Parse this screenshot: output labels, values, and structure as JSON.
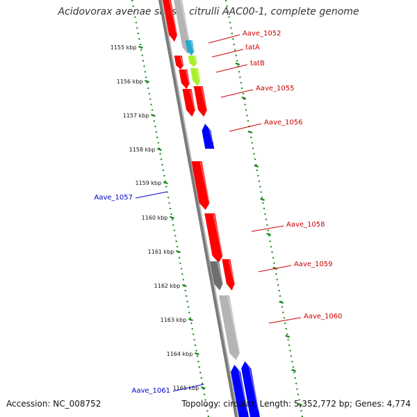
{
  "title": "Acidovorax avenae subsp. citrulli AAC00-1, complete genome",
  "footer": {
    "accession": "Accession: NC_008752",
    "topology": "Topology: circular; Length: 5,352,772 bp; Genes: 4,774"
  },
  "colors": {
    "backbone": "#7a7a7a",
    "ruler_dots": "#1f8a1f",
    "label_forward": "#cc0000",
    "label_reverse": "#0000cc"
  },
  "ticks": [
    {
      "label": "1155 kbp"
    },
    {
      "label": "1156 kbp"
    },
    {
      "label": "1157 kbp"
    },
    {
      "label": "1158 kbp"
    },
    {
      "label": "1159 kbp"
    },
    {
      "label": "1160 kbp"
    },
    {
      "label": "1161 kbp"
    },
    {
      "label": "1162 kbp"
    },
    {
      "label": "1163 kbp"
    },
    {
      "label": "1164 kbp"
    },
    {
      "label": "1165 kbp"
    }
  ],
  "gene_labels": [
    {
      "text": "Aave_1052",
      "color": "#cc0000"
    },
    {
      "text": "tatA",
      "color": "#cc0000"
    },
    {
      "text": "tatB",
      "color": "#cc0000"
    },
    {
      "text": "Aave_1055",
      "color": "#cc0000"
    },
    {
      "text": "Aave_1056",
      "color": "#cc0000"
    },
    {
      "text": "Aave_1057",
      "color": "#0000cc"
    },
    {
      "text": "Aave_1058",
      "color": "#cc0000"
    },
    {
      "text": "Aave_1059",
      "color": "#cc0000"
    },
    {
      "text": "Aave_1060",
      "color": "#cc0000"
    },
    {
      "text": "Aave_1061",
      "color": "#0000cc"
    }
  ],
  "features": [
    {
      "type": "gene",
      "strand": "+",
      "color": "#ff0000"
    },
    {
      "type": "gene",
      "strand": "+",
      "color": "#b4b4b4"
    },
    {
      "type": "gene",
      "strand": "+",
      "color": "#1fa9d4"
    },
    {
      "type": "gene",
      "strand": "+",
      "color": "#ff0000"
    },
    {
      "type": "gene",
      "strand": "+",
      "color": "#aaf02a"
    },
    {
      "type": "gene",
      "strand": "+",
      "color": "#ff0000"
    },
    {
      "type": "gene",
      "strand": "+",
      "color": "#aaf02a"
    },
    {
      "type": "gene",
      "strand": "+",
      "color": "#ff0000"
    },
    {
      "type": "gene",
      "strand": "+",
      "color": "#ff0000"
    },
    {
      "type": "gene",
      "strand": "-",
      "color": "#0000ff"
    },
    {
      "type": "gene",
      "strand": "+",
      "color": "#ff0000"
    },
    {
      "type": "gene",
      "strand": "+",
      "color": "#ff0000"
    },
    {
      "type": "gene",
      "strand": "+",
      "color": "#6e6e6e"
    },
    {
      "type": "gene",
      "strand": "+",
      "color": "#ff0000"
    },
    {
      "type": "gene",
      "strand": "+",
      "color": "#b4b4b4"
    },
    {
      "type": "gene",
      "strand": "-",
      "color": "#0000ff"
    }
  ]
}
